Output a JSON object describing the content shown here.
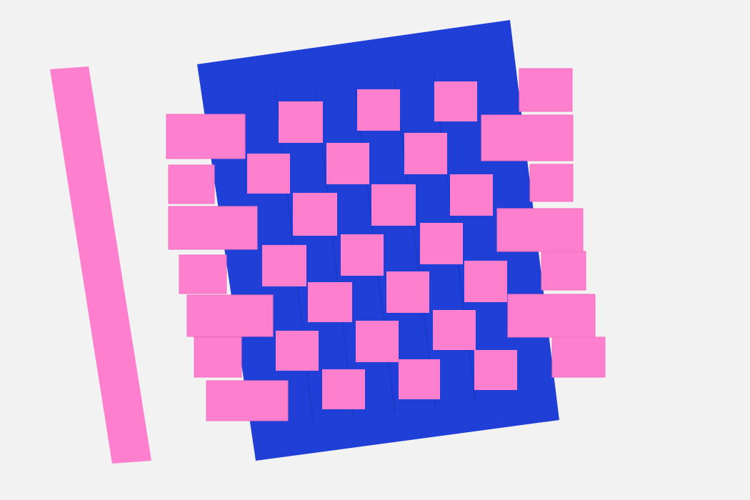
{
  "colors": {
    "background": "#f2f2f3",
    "mat": "#1f3fd6",
    "mat_shade": "#1a37c0",
    "strip": "#ff7fcf",
    "strip_edge": "#f070c0"
  },
  "weave": {
    "rows": 7,
    "columns": 7,
    "pattern": "checkerboard",
    "loose_strip_count": 1
  }
}
